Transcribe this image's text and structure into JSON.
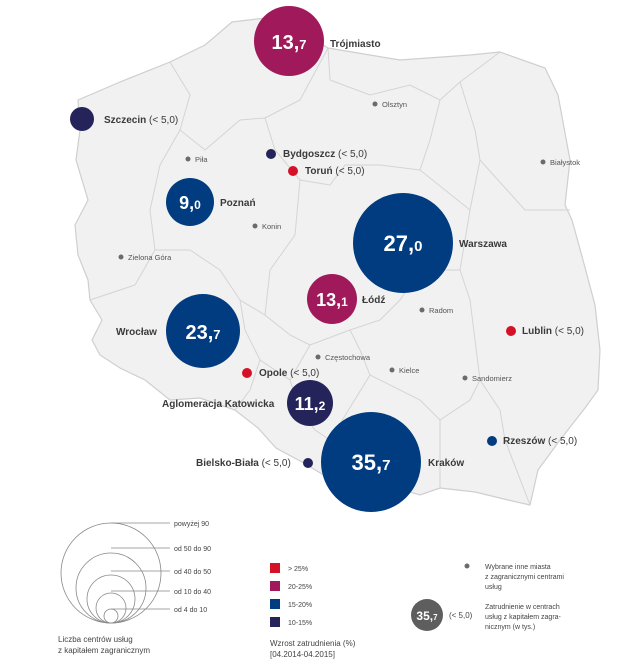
{
  "colors": {
    "gt25": "#d51128",
    "p20_25": "#a0195a",
    "p15_20": "#003c7f",
    "p10_15": "#24235a",
    "land": "#f1f1f1",
    "border": "#cfcfcf",
    "grey_dot": "#6b6b6b",
    "legend_bubble": "#5e5e5e"
  },
  "bubbles": [
    {
      "key": "trojmiasto",
      "label": "Trójmiasto",
      "value_main": "13,",
      "value_dec": "7",
      "category": "p20_25"
    },
    {
      "key": "poznan",
      "label": "Poznań",
      "value_main": "9,",
      "value_dec": "0",
      "category": "p15_20"
    },
    {
      "key": "warszawa",
      "label": "Warszawa",
      "value_main": "27,",
      "value_dec": "0",
      "category": "p15_20"
    },
    {
      "key": "lodz",
      "label": "Łódź",
      "value_main": "13,",
      "value_dec": "1",
      "category": "p20_25"
    },
    {
      "key": "wroclaw",
      "label": "Wrocław",
      "value_main": "23,",
      "value_dec": "7",
      "category": "p15_20"
    },
    {
      "key": "katowice",
      "label": "Aglomeracja Katowicka",
      "value_main": "11,",
      "value_dec": "2",
      "category": "p10_15"
    },
    {
      "key": "krakow",
      "label": "Kraków",
      "value_main": "35,",
      "value_dec": "7",
      "category": "p15_20"
    }
  ],
  "small_centres": [
    {
      "key": "szczecin",
      "name": "Szczecin",
      "note": "(< 5,0)",
      "category": "p10_15"
    },
    {
      "key": "bydgoszcz",
      "name": "Bydgoszcz",
      "note": "(< 5,0)",
      "category": "p10_15"
    },
    {
      "key": "torun",
      "name": "Toruń",
      "note": "(< 5,0)",
      "category": "gt25"
    },
    {
      "key": "lublin",
      "name": "Lublin",
      "note": "(< 5,0)",
      "category": "gt25"
    },
    {
      "key": "opole",
      "name": "Opole",
      "note": "(< 5,0)",
      "category": "gt25"
    },
    {
      "key": "rzeszow",
      "name": "Rzeszów",
      "note": "(< 5,0)",
      "category": "p15_20"
    },
    {
      "key": "bielsko",
      "name": "Bielsko-Biała",
      "note": "(< 5,0)",
      "category": "p10_15"
    }
  ],
  "other_cities": [
    "Olsztyn",
    "Piła",
    "Białystok",
    "Konin",
    "Zielona Góra",
    "Radom",
    "Częstochowa",
    "Kielce",
    "Sandomierz"
  ],
  "legend": {
    "size_labels": [
      "powyżej 90",
      "od 50 do 90",
      "od 40 do 50",
      "od 10 do 40",
      "od 4 do 10"
    ],
    "size_caption": [
      "Liczba centrów usług",
      "z kapitałem zagranicznym"
    ],
    "growth_items": [
      {
        "label": "> 25%",
        "category": "gt25"
      },
      {
        "label": "20-25%",
        "category": "p20_25"
      },
      {
        "label": "15-20%",
        "category": "p15_20"
      },
      {
        "label": "10-15%",
        "category": "p10_15"
      }
    ],
    "growth_caption": [
      "Wzrost zatrudnienia (%)",
      "[04.2014-04.2015]"
    ],
    "other_cities_text": [
      "Wybrane inne miasta",
      "z zagranicznymi centrami",
      "usług"
    ],
    "sample_value_main": "35,",
    "sample_value_dec": "7",
    "sample_note": "(< 5,0)",
    "employment_text": [
      "Zatrudnienie w centrach",
      "usług z kapitałem zagra-",
      "nicznym (w tys.)"
    ]
  }
}
